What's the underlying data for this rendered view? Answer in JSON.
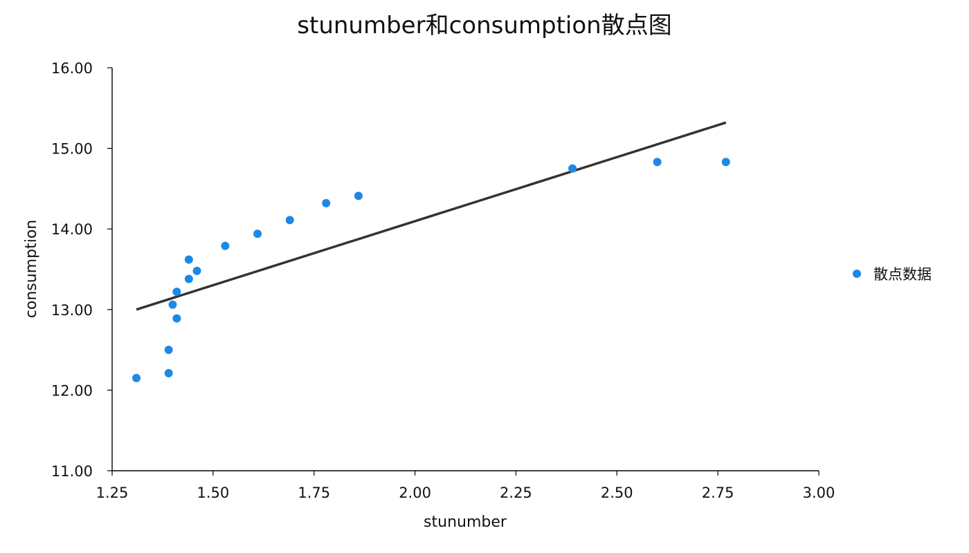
{
  "chart_data": {
    "type": "scatter",
    "title": "stunumber和consumption散点图",
    "xlabel": "stunumber",
    "ylabel": "consumption",
    "xlim": [
      1.25,
      3.0
    ],
    "ylim": [
      11.0,
      16.0
    ],
    "x_ticks": [
      "1.25",
      "1.50",
      "1.75",
      "2.00",
      "2.25",
      "2.50",
      "2.75",
      "3.00"
    ],
    "y_ticks": [
      "11.00",
      "12.00",
      "13.00",
      "14.00",
      "15.00",
      "16.00"
    ],
    "grid": false,
    "legend_position": "right",
    "series": [
      {
        "name": "散点数据",
        "type": "scatter",
        "color": "#1E88E5",
        "points": [
          {
            "x": 1.31,
            "y": 12.15
          },
          {
            "x": 1.39,
            "y": 12.21
          },
          {
            "x": 1.39,
            "y": 12.5
          },
          {
            "x": 1.4,
            "y": 13.06
          },
          {
            "x": 1.41,
            "y": 12.89
          },
          {
            "x": 1.41,
            "y": 13.22
          },
          {
            "x": 1.44,
            "y": 13.38
          },
          {
            "x": 1.44,
            "y": 13.62
          },
          {
            "x": 1.46,
            "y": 13.48
          },
          {
            "x": 1.53,
            "y": 13.79
          },
          {
            "x": 1.61,
            "y": 13.94
          },
          {
            "x": 1.69,
            "y": 14.11
          },
          {
            "x": 1.78,
            "y": 14.32
          },
          {
            "x": 1.86,
            "y": 14.41
          },
          {
            "x": 2.39,
            "y": 14.75
          },
          {
            "x": 2.6,
            "y": 14.83
          },
          {
            "x": 2.77,
            "y": 14.83
          }
        ]
      },
      {
        "type": "line",
        "color": "#333333",
        "points": [
          {
            "x": 1.31,
            "y": 13.0
          },
          {
            "x": 2.77,
            "y": 15.32
          }
        ]
      }
    ]
  }
}
